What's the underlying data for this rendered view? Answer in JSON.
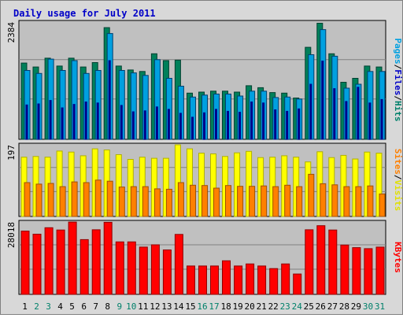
{
  "title": "Daily usage for July 2011",
  "colors": {
    "hits": "#00805a",
    "hits_light": "#5fd0b0",
    "files": "#00a0e0",
    "files_light": "#80e0ff",
    "pages": "#00008b",
    "visits": "#ffff00",
    "visits_dark": "#b0b000",
    "sites": "#ff8000",
    "sites_dark": "#a05000",
    "kbytes": "#ff0000",
    "kbytes_dark": "#900000",
    "label_blue": "#0000c8",
    "label_green": "#00806a",
    "label_orange": "#ff8000",
    "label_yellow": "#e0e000",
    "label_red": "#ff0000",
    "plot_bg": "#c0c0c0",
    "panel_bg": "#d8d8d8"
  },
  "chart_data": [
    {
      "type": "bar",
      "name": "hits-files-pages",
      "ymax_label": "2384",
      "ymax": 2384,
      "legend": [
        "Pages",
        "/",
        "Files",
        "/",
        "Hits"
      ],
      "categories": [
        "1",
        "2",
        "3",
        "4",
        "5",
        "6",
        "7",
        "8",
        "9",
        "10",
        "11",
        "12",
        "13",
        "14",
        "15",
        "16",
        "17",
        "18",
        "19",
        "20",
        "21",
        "22",
        "23",
        "24",
        "25",
        "26",
        "27",
        "28",
        "29",
        "30",
        "31"
      ],
      "weekend_days": [
        "2",
        "3",
        "9",
        "10",
        "16",
        "17",
        "23",
        "24",
        "30",
        "31"
      ],
      "series": [
        {
          "name": "Hits",
          "values": [
            1550,
            1470,
            1650,
            1490,
            1650,
            1470,
            1560,
            2270,
            1490,
            1410,
            1380,
            1740,
            1600,
            1610,
            940,
            960,
            980,
            980,
            960,
            1090,
            1050,
            950,
            940,
            840,
            1870,
            2360,
            1740,
            1160,
            1240,
            1490,
            1470
          ]
        },
        {
          "name": "Files",
          "values": [
            1400,
            1340,
            1630,
            1400,
            1600,
            1340,
            1400,
            2150,
            1400,
            1350,
            1300,
            1620,
            1240,
            1080,
            860,
            900,
            920,
            920,
            880,
            980,
            980,
            850,
            860,
            820,
            1720,
            2230,
            1690,
            1040,
            1120,
            1380,
            1380
          ]
        },
        {
          "name": "Pages",
          "values": [
            700,
            720,
            790,
            640,
            710,
            760,
            740,
            1600,
            690,
            560,
            580,
            660,
            610,
            530,
            450,
            540,
            610,
            570,
            550,
            760,
            740,
            600,
            570,
            620,
            1120,
            1590,
            1030,
            770,
            1060,
            740,
            810
          ]
        }
      ]
    },
    {
      "type": "bar",
      "name": "visits-sites",
      "ymax_label": "197",
      "ymax": 197,
      "legend": [
        "Sites",
        "/",
        "Visits"
      ],
      "categories": [
        "1",
        "2",
        "3",
        "4",
        "5",
        "6",
        "7",
        "8",
        "9",
        "10",
        "11",
        "12",
        "13",
        "14",
        "15",
        "16",
        "17",
        "18",
        "19",
        "20",
        "21",
        "22",
        "23",
        "24",
        "25",
        "26",
        "27",
        "28",
        "29",
        "30",
        "31"
      ],
      "series": [
        {
          "name": "Visits",
          "values": [
            163,
            165,
            163,
            180,
            177,
            167,
            186,
            183,
            170,
            157,
            163,
            160,
            160,
            197,
            186,
            174,
            172,
            165,
            175,
            179,
            162,
            163,
            167,
            163,
            150,
            178,
            162,
            168,
            158,
            177,
            174
          ]
        },
        {
          "name": "Sites",
          "values": [
            93,
            89,
            91,
            82,
            95,
            93,
            100,
            97,
            81,
            82,
            82,
            76,
            75,
            93,
            86,
            85,
            78,
            85,
            83,
            83,
            84,
            82,
            86,
            82,
            116,
            90,
            87,
            82,
            82,
            84,
            62
          ]
        }
      ]
    },
    {
      "type": "bar",
      "name": "kbytes",
      "ymax_label": "28018",
      "ymax": 28018,
      "legend": [
        "KBytes"
      ],
      "categories": [
        "1",
        "2",
        "3",
        "4",
        "5",
        "6",
        "7",
        "8",
        "9",
        "10",
        "11",
        "12",
        "13",
        "14",
        "15",
        "16",
        "17",
        "18",
        "19",
        "20",
        "21",
        "22",
        "23",
        "24",
        "25",
        "26",
        "27",
        "28",
        "29",
        "30",
        "31"
      ],
      "series": [
        {
          "name": "KBytes",
          "values": [
            24480,
            23300,
            25800,
            24900,
            28000,
            21200,
            25000,
            27900,
            20300,
            20300,
            18300,
            19200,
            17200,
            23200,
            11000,
            11000,
            11000,
            13000,
            11000,
            11800,
            11000,
            10000,
            11800,
            7900,
            25000,
            26600,
            24900,
            19100,
            18100,
            17700,
            18300
          ]
        }
      ]
    }
  ]
}
